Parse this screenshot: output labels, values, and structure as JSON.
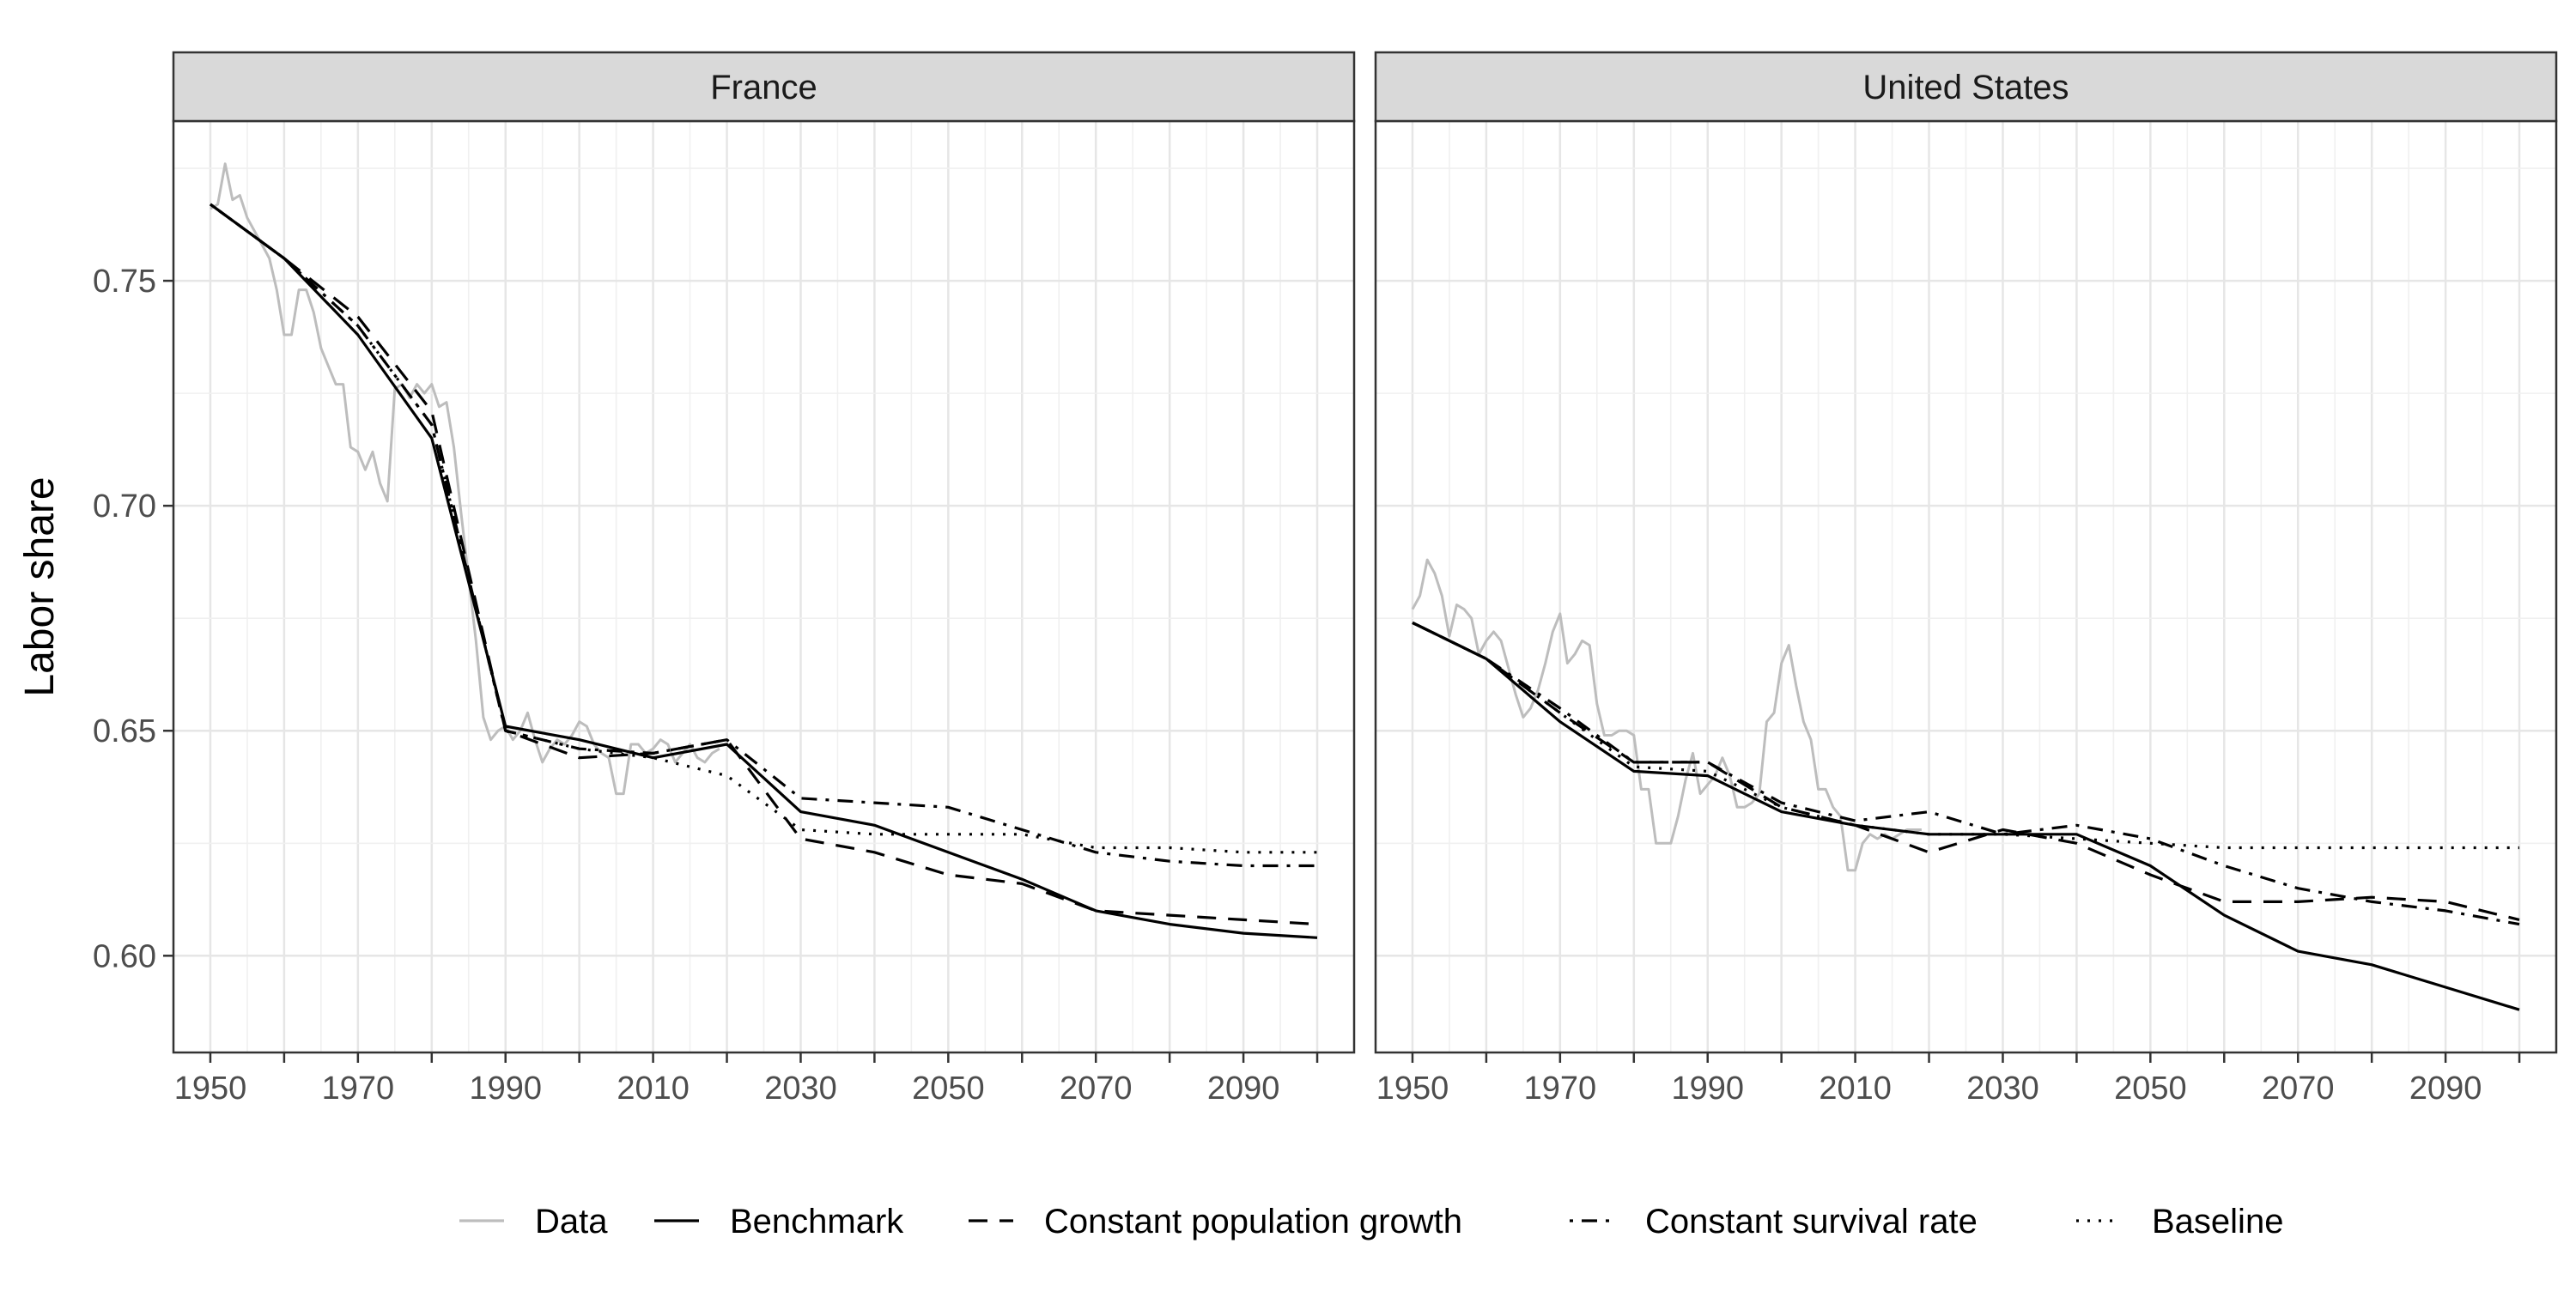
{
  "chart_data": {
    "type": "line",
    "ylabel": "Labor share",
    "xlabel": "",
    "xlim": [
      1945,
      2105
    ],
    "ylim": [
      0.5785,
      0.7855
    ],
    "x_ticks": [
      1950,
      1970,
      1990,
      2010,
      2030,
      2050,
      2070,
      2090
    ],
    "y_ticks": [
      0.6,
      0.65,
      0.7,
      0.75
    ],
    "y_tick_labels": [
      "0.60",
      "0.65",
      "0.70",
      "0.75"
    ],
    "grid": true,
    "legend_position": "bottom",
    "legend": [
      {
        "key": "data",
        "label": "Data",
        "color": "#bdbdbd",
        "dash": "solid"
      },
      {
        "key": "benchmark",
        "label": "Benchmark",
        "color": "#000000",
        "dash": "solid"
      },
      {
        "key": "const_pop",
        "label": "Constant population growth",
        "color": "#000000",
        "dash": "dashed"
      },
      {
        "key": "const_surv",
        "label": "Constant survival rate",
        "color": "#000000",
        "dash": "dotdash"
      },
      {
        "key": "baseline",
        "label": "Baseline",
        "color": "#000000",
        "dash": "dotted"
      }
    ],
    "panels": [
      {
        "title": "France",
        "series": {
          "data": {
            "x": [
              1950,
              1951,
              1952,
              1953,
              1954,
              1955,
              1956,
              1957,
              1958,
              1959,
              1960,
              1961,
              1962,
              1963,
              1964,
              1965,
              1966,
              1967,
              1968,
              1969,
              1970,
              1971,
              1972,
              1973,
              1974,
              1975,
              1976,
              1977,
              1978,
              1979,
              1980,
              1981,
              1982,
              1983,
              1984,
              1985,
              1986,
              1987,
              1988,
              1989,
              1990,
              1991,
              1992,
              1993,
              1994,
              1995,
              1996,
              1997,
              1998,
              1999,
              2000,
              2001,
              2002,
              2003,
              2004,
              2005,
              2006,
              2007,
              2008,
              2009,
              2010,
              2011,
              2012,
              2013,
              2014,
              2015,
              2016,
              2017,
              2018,
              2019
            ],
            "y": [
              0.766,
              0.767,
              0.776,
              0.768,
              0.769,
              0.764,
              0.761,
              0.758,
              0.755,
              0.748,
              0.738,
              0.738,
              0.748,
              0.748,
              0.743,
              0.735,
              0.731,
              0.727,
              0.727,
              0.713,
              0.712,
              0.708,
              0.712,
              0.705,
              0.701,
              0.726,
              0.727,
              0.724,
              0.727,
              0.725,
              0.727,
              0.722,
              0.723,
              0.713,
              0.698,
              0.684,
              0.67,
              0.653,
              0.648,
              0.65,
              0.651,
              0.648,
              0.65,
              0.654,
              0.648,
              0.643,
              0.646,
              0.648,
              0.647,
              0.649,
              0.652,
              0.651,
              0.647,
              0.645,
              0.644,
              0.636,
              0.636,
              0.647,
              0.647,
              0.645,
              0.646,
              0.648,
              0.647,
              0.643,
              0.645,
              0.647,
              0.644,
              0.643,
              0.645,
              0.646
            ]
          },
          "benchmark": {
            "x": [
              1950,
              1960,
              1970,
              1980,
              1990,
              2000,
              2010,
              2020,
              2030,
              2040,
              2050,
              2060,
              2070,
              2080,
              2090,
              2100
            ],
            "y": [
              0.767,
              0.755,
              0.738,
              0.715,
              0.651,
              0.648,
              0.644,
              0.647,
              0.632,
              0.629,
              0.623,
              0.617,
              0.61,
              0.607,
              0.605,
              0.604
            ]
          },
          "const_pop": {
            "x": [
              1950,
              1960,
              1970,
              1980,
              1990,
              2000,
              2010,
              2020,
              2030,
              2040,
              2050,
              2060,
              2070,
              2080,
              2090,
              2100
            ],
            "y": [
              0.767,
              0.755,
              0.742,
              0.721,
              0.65,
              0.644,
              0.645,
              0.648,
              0.626,
              0.623,
              0.618,
              0.616,
              0.61,
              0.609,
              0.608,
              0.607
            ]
          },
          "const_surv": {
            "x": [
              1950,
              1960,
              1970,
              1980,
              1990,
              2000,
              2010,
              2020,
              2030,
              2040,
              2050,
              2060,
              2070,
              2080,
              2090,
              2100
            ],
            "y": [
              0.767,
              0.755,
              0.74,
              0.718,
              0.65,
              0.646,
              0.645,
              0.648,
              0.635,
              0.634,
              0.633,
              0.628,
              0.623,
              0.621,
              0.62,
              0.62
            ]
          },
          "baseline": {
            "x": [
              1950,
              1960,
              1970,
              1980,
              1990,
              2000,
              2010,
              2020,
              2030,
              2040,
              2050,
              2060,
              2070,
              2080,
              2090,
              2100
            ],
            "y": [
              0.767,
              0.755,
              0.74,
              0.718,
              0.65,
              0.646,
              0.644,
              0.64,
              0.628,
              0.627,
              0.627,
              0.627,
              0.624,
              0.624,
              0.623,
              0.623
            ]
          }
        }
      },
      {
        "title": "United States",
        "series": {
          "data": {
            "x": [
              1950,
              1951,
              1952,
              1953,
              1954,
              1955,
              1956,
              1957,
              1958,
              1959,
              1960,
              1961,
              1962,
              1963,
              1964,
              1965,
              1966,
              1967,
              1968,
              1969,
              1970,
              1971,
              1972,
              1973,
              1974,
              1975,
              1976,
              1977,
              1978,
              1979,
              1980,
              1981,
              1982,
              1983,
              1984,
              1985,
              1986,
              1987,
              1988,
              1989,
              1990,
              1991,
              1992,
              1993,
              1994,
              1995,
              1996,
              1997,
              1998,
              1999,
              2000,
              2001,
              2002,
              2003,
              2004,
              2005,
              2006,
              2007,
              2008,
              2009,
              2010,
              2011,
              2012,
              2013,
              2014,
              2015,
              2016,
              2017,
              2018,
              2019
            ],
            "y": [
              0.677,
              0.68,
              0.688,
              0.685,
              0.68,
              0.671,
              0.678,
              0.677,
              0.675,
              0.667,
              0.67,
              0.672,
              0.67,
              0.664,
              0.658,
              0.653,
              0.655,
              0.659,
              0.665,
              0.672,
              0.676,
              0.665,
              0.667,
              0.67,
              0.669,
              0.656,
              0.649,
              0.649,
              0.65,
              0.65,
              0.649,
              0.637,
              0.637,
              0.625,
              0.625,
              0.625,
              0.631,
              0.639,
              0.645,
              0.636,
              0.638,
              0.64,
              0.644,
              0.64,
              0.633,
              0.633,
              0.634,
              0.636,
              0.652,
              0.654,
              0.665,
              0.669,
              0.66,
              0.652,
              0.648,
              0.637,
              0.637,
              0.633,
              0.631,
              0.619,
              0.619,
              0.625,
              0.627,
              0.626,
              0.627,
              0.626,
              0.627,
              0.628,
              0.628,
              0.628
            ]
          },
          "benchmark": {
            "x": [
              1950,
              1960,
              1970,
              1980,
              1990,
              2000,
              2010,
              2020,
              2030,
              2040,
              2050,
              2060,
              2070,
              2080,
              2090,
              2100
            ],
            "y": [
              0.674,
              0.666,
              0.652,
              0.641,
              0.64,
              0.632,
              0.629,
              0.627,
              0.627,
              0.627,
              0.62,
              0.609,
              0.601,
              0.598,
              0.593,
              0.588
            ]
          },
          "const_pop": {
            "x": [
              1950,
              1960,
              1970,
              1980,
              1990,
              2000,
              2010,
              2020,
              2030,
              2040,
              2050,
              2060,
              2070,
              2080,
              2090,
              2100
            ],
            "y": [
              0.674,
              0.666,
              0.654,
              0.643,
              0.643,
              0.633,
              0.629,
              0.623,
              0.628,
              0.625,
              0.618,
              0.612,
              0.612,
              0.613,
              0.612,
              0.608
            ]
          },
          "const_surv": {
            "x": [
              1950,
              1960,
              1970,
              1980,
              1990,
              2000,
              2010,
              2020,
              2030,
              2040,
              2050,
              2060,
              2070,
              2080,
              2090,
              2100
            ],
            "y": [
              0.674,
              0.666,
              0.655,
              0.643,
              0.643,
              0.634,
              0.63,
              0.632,
              0.627,
              0.629,
              0.626,
              0.62,
              0.615,
              0.612,
              0.61,
              0.607
            ]
          },
          "baseline": {
            "x": [
              1950,
              1960,
              1970,
              1980,
              1990,
              2000,
              2010,
              2020,
              2030,
              2040,
              2050,
              2060,
              2070,
              2080,
              2090,
              2100
            ],
            "y": [
              0.674,
              0.666,
              0.654,
              0.642,
              0.641,
              0.633,
              0.629,
              0.627,
              0.627,
              0.626,
              0.625,
              0.624,
              0.624,
              0.624,
              0.624,
              0.624
            ]
          }
        }
      }
    ]
  }
}
